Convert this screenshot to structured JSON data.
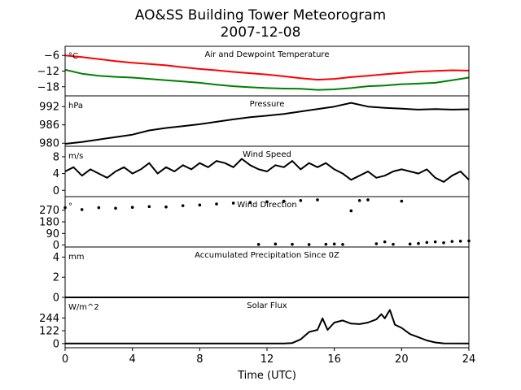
{
  "title": "AO&SS Building Tower Meteorogram",
  "subtitle": "2007-12-08",
  "chart_data": [
    {
      "type": "line",
      "panel_title": "Air and Dewpoint Temperature",
      "unit": "°C",
      "ylim": [
        -21.5,
        -2.5
      ],
      "yticks": [
        -18,
        -12,
        -6
      ],
      "ytick_labels": [
        "−18",
        "−12",
        "−6"
      ],
      "series": [
        {
          "color": "#ff0000",
          "points": [
            [
              0,
              -6
            ],
            [
              1,
              -6.6
            ],
            [
              2,
              -7.4
            ],
            [
              3,
              -8.2
            ],
            [
              4,
              -8.8
            ],
            [
              5,
              -9.3
            ],
            [
              6,
              -9.8
            ],
            [
              7,
              -10.5
            ],
            [
              8,
              -11.2
            ],
            [
              9,
              -11.7
            ],
            [
              10,
              -12.3
            ],
            [
              11,
              -12.8
            ],
            [
              12,
              -13.3
            ],
            [
              13,
              -14
            ],
            [
              14,
              -14.7
            ],
            [
              15,
              -15.3
            ],
            [
              16,
              -15.0
            ],
            [
              17,
              -14.3
            ],
            [
              18,
              -13.8
            ],
            [
              19,
              -13.2
            ],
            [
              20,
              -12.7
            ],
            [
              21,
              -12.2
            ],
            [
              22,
              -11.9
            ],
            [
              23,
              -11.7
            ],
            [
              24,
              -11.8
            ]
          ]
        },
        {
          "color": "#008000",
          "points": [
            [
              0,
              -11.5
            ],
            [
              1,
              -13
            ],
            [
              2,
              -13.8
            ],
            [
              3,
              -14.2
            ],
            [
              4,
              -14.5
            ],
            [
              5,
              -15
            ],
            [
              6,
              -15.5
            ],
            [
              7,
              -16
            ],
            [
              8,
              -16.5
            ],
            [
              9,
              -17.2
            ],
            [
              10,
              -17.8
            ],
            [
              11,
              -18.2
            ],
            [
              12,
              -18.5
            ],
            [
              13,
              -18.7
            ],
            [
              14,
              -18.8
            ],
            [
              15,
              -19.2
            ],
            [
              16,
              -19.0
            ],
            [
              17,
              -18.5
            ],
            [
              18,
              -17.8
            ],
            [
              19,
              -17.5
            ],
            [
              20,
              -17.0
            ],
            [
              21,
              -16.8
            ],
            [
              22,
              -16.5
            ],
            [
              23,
              -15.5
            ],
            [
              24,
              -14.5
            ]
          ]
        }
      ]
    },
    {
      "type": "line",
      "panel_title": "Pressure",
      "unit": "hPa",
      "ylim": [
        979,
        995.5
      ],
      "yticks": [
        980,
        986,
        992
      ],
      "ytick_labels": [
        "980",
        "986",
        "992"
      ],
      "series": [
        {
          "color": "#000000",
          "points": [
            [
              0,
              979.8
            ],
            [
              1,
              980.4
            ],
            [
              2,
              981.2
            ],
            [
              3,
              982.0
            ],
            [
              4,
              982.8
            ],
            [
              5,
              984.2
            ],
            [
              6,
              985.0
            ],
            [
              7,
              985.6
            ],
            [
              8,
              986.2
            ],
            [
              9,
              987.0
            ],
            [
              10,
              987.8
            ],
            [
              11,
              988.5
            ],
            [
              12,
              989.0
            ],
            [
              13,
              989.6
            ],
            [
              14,
              990.4
            ],
            [
              15,
              991.2
            ],
            [
              16,
              992.0
            ],
            [
              17,
              993.2
            ],
            [
              18,
              992.0
            ],
            [
              19,
              991.6
            ],
            [
              20,
              991.3
            ],
            [
              21,
              991.0
            ],
            [
              22,
              991.2
            ],
            [
              23,
              991.0
            ],
            [
              24,
              991.1
            ]
          ]
        }
      ]
    },
    {
      "type": "line",
      "panel_title": "Wind Speed",
      "unit": "m/s",
      "ylim": [
        -1.5,
        10.5
      ],
      "yticks": [
        0,
        4,
        8
      ],
      "ytick_labels": [
        "0",
        "4",
        "8"
      ],
      "series": [
        {
          "color": "#000000",
          "points": [
            [
              0,
              4.5
            ],
            [
              0.5,
              5.5
            ],
            [
              1,
              3.5
            ],
            [
              1.5,
              5
            ],
            [
              2,
              4
            ],
            [
              2.5,
              3
            ],
            [
              3,
              4.5
            ],
            [
              3.5,
              5.5
            ],
            [
              4,
              4
            ],
            [
              4.5,
              5
            ],
            [
              5,
              6.5
            ],
            [
              5.5,
              4
            ],
            [
              6,
              5.5
            ],
            [
              6.5,
              4.5
            ],
            [
              7,
              6
            ],
            [
              7.5,
              5
            ],
            [
              8,
              6.5
            ],
            [
              8.5,
              5.5
            ],
            [
              9,
              7
            ],
            [
              9.5,
              6.5
            ],
            [
              10,
              5.5
            ],
            [
              10.5,
              7.5
            ],
            [
              11,
              6
            ],
            [
              11.5,
              5
            ],
            [
              12,
              4.5
            ],
            [
              12.5,
              6
            ],
            [
              13,
              5.5
            ],
            [
              13.5,
              7
            ],
            [
              14,
              5
            ],
            [
              14.5,
              6.5
            ],
            [
              15,
              5.5
            ],
            [
              15.5,
              6.5
            ],
            [
              16,
              5
            ],
            [
              16.5,
              4
            ],
            [
              17,
              2.5
            ],
            [
              17.5,
              3.5
            ],
            [
              18,
              4.5
            ],
            [
              18.5,
              3
            ],
            [
              19,
              3.5
            ],
            [
              19.5,
              4.5
            ],
            [
              20,
              5
            ],
            [
              20.5,
              4.5
            ],
            [
              21,
              4
            ],
            [
              21.5,
              5
            ],
            [
              22,
              3
            ],
            [
              22.5,
              2
            ],
            [
              23,
              3.5
            ],
            [
              23.5,
              4.5
            ],
            [
              24,
              2.5
            ]
          ]
        }
      ]
    },
    {
      "type": "scatter",
      "panel_title": "Wind Direction",
      "unit": "°",
      "ylim": [
        -15,
        375
      ],
      "yticks": [
        0,
        90,
        180,
        270
      ],
      "ytick_labels": [
        "0",
        "90",
        "180",
        "270"
      ],
      "series": [
        {
          "color": "#000000",
          "points": [
            [
              0,
              290
            ],
            [
              1,
              275
            ],
            [
              2,
              290
            ],
            [
              3,
              285
            ],
            [
              4,
              292
            ],
            [
              5,
              298
            ],
            [
              6,
              295
            ],
            [
              7,
              305
            ],
            [
              8,
              310
            ],
            [
              9,
              318
            ],
            [
              10,
              325
            ],
            [
              11,
              330
            ],
            [
              11.5,
              5
            ],
            [
              12,
              335
            ],
            [
              12.5,
              8
            ],
            [
              13,
              340
            ],
            [
              13.5,
              6
            ],
            [
              14,
              345
            ],
            [
              14.5,
              4
            ],
            [
              15,
              350
            ],
            [
              15.5,
              6
            ],
            [
              16,
              8
            ],
            [
              16.5,
              5
            ],
            [
              17,
              265
            ],
            [
              17.5,
              345
            ],
            [
              18,
              350
            ],
            [
              18.5,
              10
            ],
            [
              19,
              25
            ],
            [
              19.5,
              6
            ],
            [
              20,
              340
            ],
            [
              20.5,
              8
            ],
            [
              21,
              12
            ],
            [
              21.5,
              20
            ],
            [
              22,
              25
            ],
            [
              22.5,
              18
            ],
            [
              23,
              28
            ],
            [
              23.5,
              30
            ],
            [
              24,
              32
            ]
          ]
        }
      ]
    },
    {
      "type": "line",
      "panel_title": "Accumulated Precipitation Since 0Z",
      "unit": "mm",
      "ylim": [
        0,
        5
      ],
      "yticks": [
        0,
        2,
        4
      ],
      "ytick_labels": [
        "0",
        "2",
        "4"
      ],
      "series": [
        {
          "color": "#000000",
          "points": [
            [
              0,
              0
            ],
            [
              24,
              0
            ]
          ]
        }
      ]
    },
    {
      "type": "line",
      "panel_title": "Solar Flux",
      "unit": "W/m^2",
      "ylim": [
        -40,
        440
      ],
      "yticks": [
        0,
        122,
        244
      ],
      "ytick_labels": [
        "0",
        "122",
        "244"
      ],
      "series": [
        {
          "color": "#000000",
          "points": [
            [
              0,
              0
            ],
            [
              13,
              0
            ],
            [
              13.5,
              5
            ],
            [
              14,
              40
            ],
            [
              14.5,
              110
            ],
            [
              15,
              130
            ],
            [
              15.3,
              240
            ],
            [
              15.6,
              130
            ],
            [
              16,
              200
            ],
            [
              16.5,
              220
            ],
            [
              17,
              190
            ],
            [
              17.5,
              185
            ],
            [
              18,
              200
            ],
            [
              18.5,
              230
            ],
            [
              18.8,
              280
            ],
            [
              19,
              240
            ],
            [
              19.3,
              320
            ],
            [
              19.6,
              180
            ],
            [
              20,
              150
            ],
            [
              20.5,
              90
            ],
            [
              21,
              60
            ],
            [
              21.5,
              30
            ],
            [
              22,
              10
            ],
            [
              22.5,
              2
            ],
            [
              24,
              0
            ]
          ]
        }
      ]
    }
  ],
  "xaxis": {
    "label": "Time (UTC)",
    "lim": [
      0,
      24
    ],
    "ticks": [
      0,
      4,
      8,
      12,
      16,
      20,
      24
    ],
    "tick_labels": [
      "0",
      "4",
      "8",
      "12",
      "16",
      "20",
      "24"
    ]
  }
}
